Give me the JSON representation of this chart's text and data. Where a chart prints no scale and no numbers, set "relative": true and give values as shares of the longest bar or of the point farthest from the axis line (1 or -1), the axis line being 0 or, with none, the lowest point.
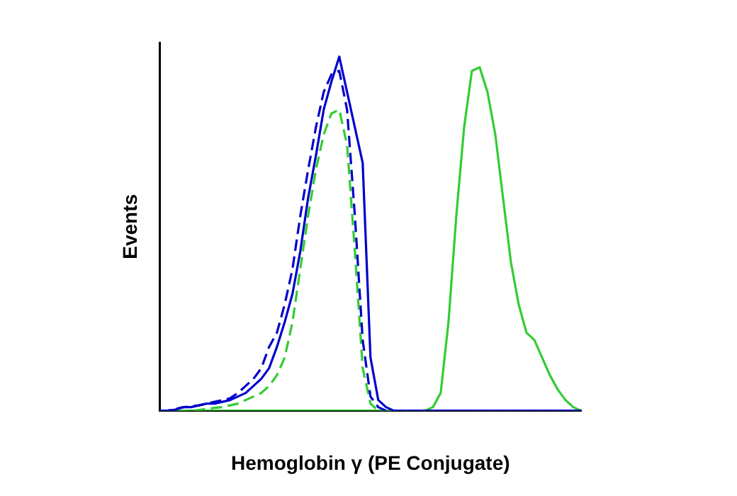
{
  "chart_data": {
    "type": "line",
    "relative": true,
    "xlabel": "Hemoglobin γ (PE Conjugate)",
    "ylabel": "Events",
    "marker": "none",
    "grid": false,
    "categories": [
      null,
      null,
      null,
      null,
      null,
      null,
      null,
      null,
      null,
      null,
      null,
      null,
      null,
      null,
      null,
      null,
      null,
      null,
      null,
      null,
      null,
      null,
      null,
      null,
      null,
      null,
      null,
      null,
      null,
      null,
      null,
      null,
      null,
      null,
      null,
      null,
      null,
      null,
      null,
      null,
      null,
      null,
      null,
      null,
      null,
      null,
      null,
      null,
      null,
      null,
      null,
      null,
      null,
      null,
      null
    ],
    "series": [
      {
        "color": "#0000cc",
        "line_style": "solid",
        "values": [
          0,
          0,
          0.003,
          0.01,
          0.01,
          0.015,
          0.02,
          0.02,
          0.025,
          0.03,
          0.04,
          0.05,
          0.07,
          0.09,
          0.12,
          0.18,
          0.25,
          0.33,
          0.45,
          0.6,
          0.72,
          0.85,
          0.93,
          1,
          0.9,
          0.8,
          0.7,
          0.15,
          0.03,
          0.01,
          0,
          0,
          0,
          0,
          0,
          0,
          0,
          0,
          0,
          0,
          0,
          0,
          0,
          0,
          0,
          0,
          0,
          0,
          0,
          0,
          0,
          0,
          0,
          0,
          0
        ]
      },
      {
        "color": "#0000cc",
        "line_style": "dashed",
        "values": [
          0,
          0,
          0.005,
          0.01,
          0.012,
          0.015,
          0.02,
          0.025,
          0.03,
          0.035,
          0.05,
          0.07,
          0.09,
          0.12,
          0.18,
          0.22,
          0.3,
          0.4,
          0.55,
          0.68,
          0.8,
          0.9,
          0.95,
          0.96,
          0.85,
          0.55,
          0.2,
          0.04,
          0.01,
          0,
          0,
          0,
          0,
          0,
          0,
          0,
          0,
          0,
          0,
          0,
          0,
          0,
          0,
          0,
          0,
          0,
          0,
          0,
          0,
          0,
          0,
          0,
          0,
          0,
          0
        ]
      },
      {
        "color": "#33cc33",
        "line_style": "dashed",
        "values": [
          0,
          0,
          0,
          0,
          0,
          0.002,
          0.005,
          0.008,
          0.01,
          0.015,
          0.02,
          0.03,
          0.04,
          0.05,
          0.07,
          0.1,
          0.15,
          0.25,
          0.4,
          0.55,
          0.68,
          0.78,
          0.84,
          0.85,
          0.75,
          0.45,
          0.12,
          0.02,
          0,
          0,
          0,
          0,
          0,
          0,
          0,
          0,
          0,
          0,
          0,
          0,
          0,
          0,
          0,
          0,
          0,
          0,
          0,
          0,
          0,
          0,
          0,
          0,
          0,
          0,
          0
        ]
      },
      {
        "color": "#33cc33",
        "line_style": "solid",
        "values": [
          0,
          0,
          0,
          0,
          0,
          0,
          0,
          0,
          0,
          0,
          0,
          0,
          0,
          0,
          0,
          0,
          0,
          0,
          0,
          0,
          0,
          0,
          0,
          0,
          0,
          0,
          0,
          0,
          0,
          0,
          0,
          0,
          0,
          0,
          0,
          0.01,
          0.05,
          0.25,
          0.55,
          0.8,
          0.96,
          0.97,
          0.9,
          0.78,
          0.6,
          0.42,
          0.3,
          0.22,
          0.2,
          0.15,
          0.1,
          0.06,
          0.03,
          0.01,
          0
        ]
      }
    ]
  }
}
